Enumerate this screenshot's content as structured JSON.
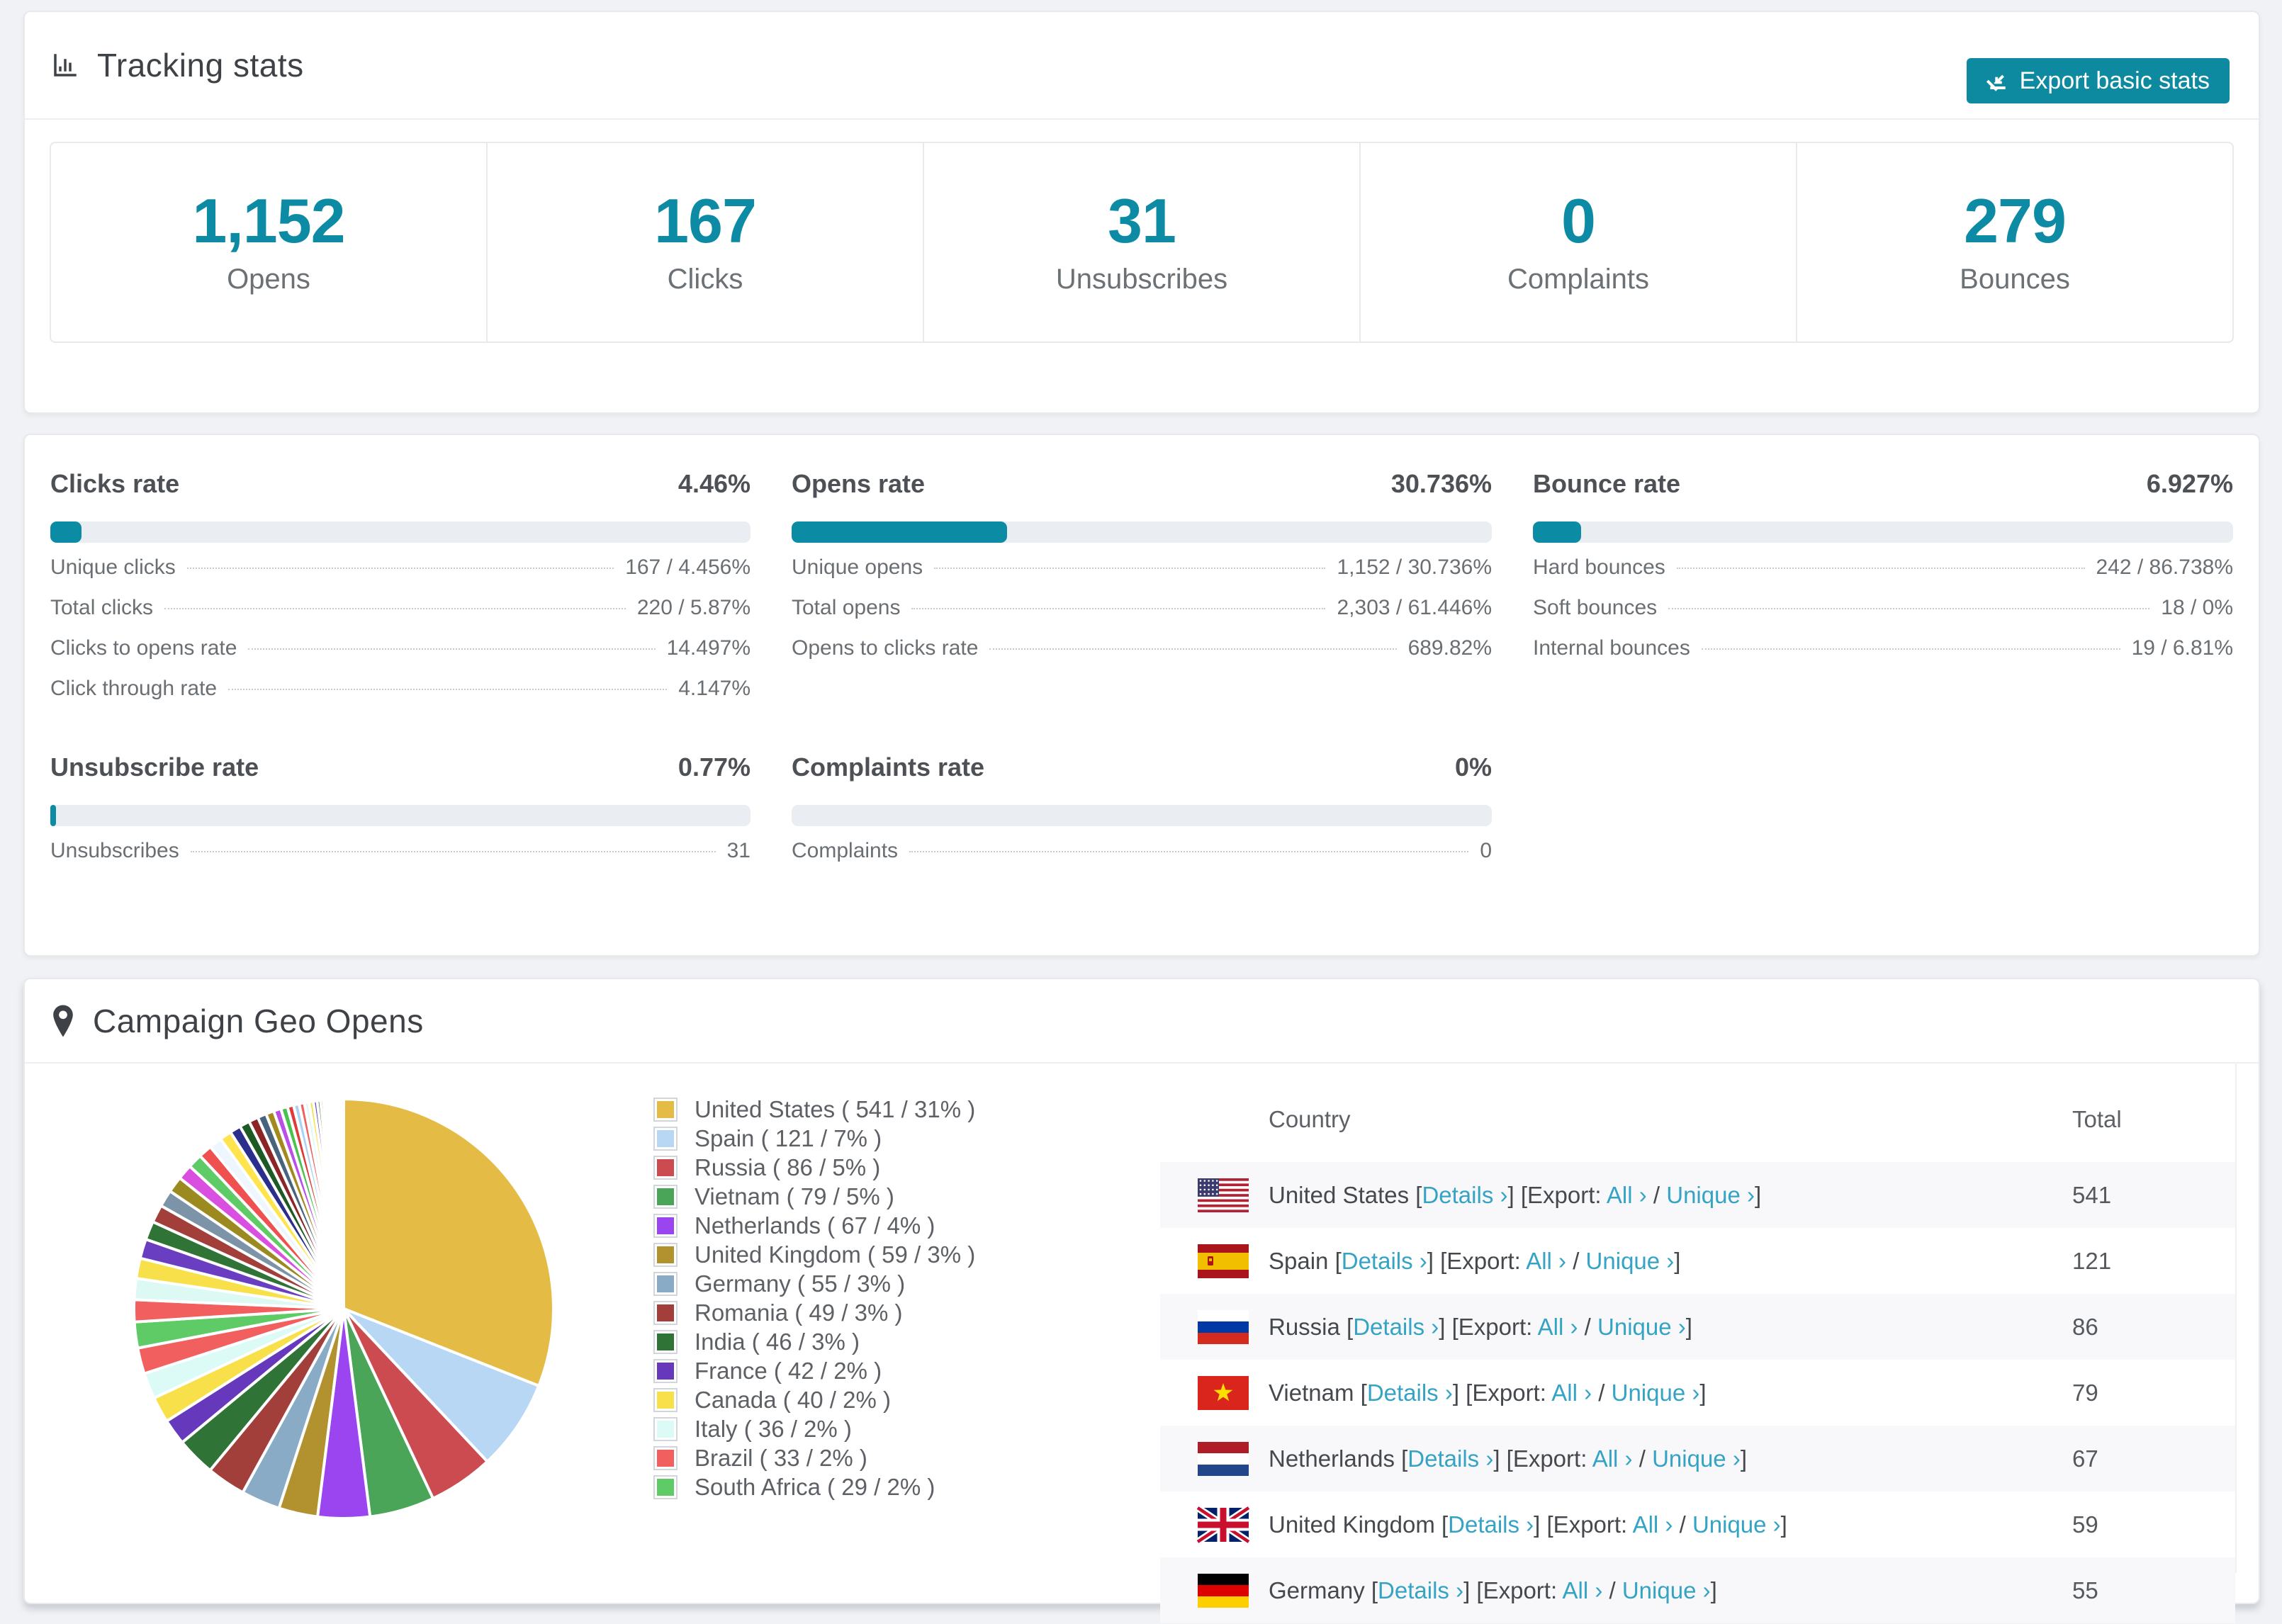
{
  "colors": {
    "accent_teal": "#0d8ba4",
    "button_teal": "#0d8a9f",
    "bar_fill": "#0c8ba5",
    "bar_track": "#eaedf1",
    "link": "#35a3c4",
    "row_alt": "#f8f8fa"
  },
  "tracking": {
    "title": "Tracking stats",
    "export_button": "Export basic stats",
    "stats": [
      {
        "value": "1,152",
        "label": "Opens"
      },
      {
        "value": "167",
        "label": "Clicks"
      },
      {
        "value": "31",
        "label": "Unsubscribes"
      },
      {
        "value": "0",
        "label": "Complaints"
      },
      {
        "value": "279",
        "label": "Bounces"
      }
    ]
  },
  "rates": {
    "clicks": {
      "title": "Clicks rate",
      "value": "4.46%",
      "percent": 4.46,
      "lines": [
        {
          "label": "Unique clicks",
          "value": "167 / 4.456%"
        },
        {
          "label": "Total clicks",
          "value": "220 / 5.87%"
        },
        {
          "label": "Clicks to opens rate",
          "value": "14.497%"
        },
        {
          "label": "Click through rate",
          "value": "4.147%"
        }
      ]
    },
    "opens": {
      "title": "Opens rate",
      "value": "30.736%",
      "percent": 30.736,
      "lines": [
        {
          "label": "Unique opens",
          "value": "1,152 / 30.736%"
        },
        {
          "label": "Total opens",
          "value": "2,303 / 61.446%"
        },
        {
          "label": "Opens to clicks rate",
          "value": "689.82%"
        }
      ]
    },
    "bounce": {
      "title": "Bounce rate",
      "value": "6.927%",
      "percent": 6.927,
      "lines": [
        {
          "label": "Hard bounces",
          "value": "242 / 86.738%"
        },
        {
          "label": "Soft bounces",
          "value": "18 / 0%"
        },
        {
          "label": "Internal bounces",
          "value": "19 / 6.81%"
        }
      ]
    },
    "unsubscribe": {
      "title": "Unsubscribe rate",
      "value": "0.77%",
      "percent": 0.77,
      "lines": [
        {
          "label": "Unsubscribes",
          "value": "31"
        }
      ]
    },
    "complaints": {
      "title": "Complaints rate",
      "value": "0%",
      "percent": 0,
      "lines": [
        {
          "label": "Complaints",
          "value": "0"
        }
      ]
    }
  },
  "geo": {
    "title": "Campaign Geo Opens",
    "table": {
      "columns": [
        "Country",
        "Total"
      ],
      "details_label": "Details",
      "export_prefix": "Export:",
      "all_label": "All",
      "unique_label": "Unique",
      "chevron": "›",
      "rows": [
        {
          "country": "United States",
          "flag": "us",
          "total": "541"
        },
        {
          "country": "Spain",
          "flag": "es",
          "total": "121"
        },
        {
          "country": "Russia",
          "flag": "ru",
          "total": "86"
        },
        {
          "country": "Vietnam",
          "flag": "vn",
          "total": "79"
        },
        {
          "country": "Netherlands",
          "flag": "nl",
          "total": "67"
        },
        {
          "country": "United Kingdom",
          "flag": "gb",
          "total": "59"
        },
        {
          "country": "Germany",
          "flag": "de",
          "total": "55"
        }
      ]
    }
  },
  "chart_data": {
    "type": "pie",
    "title": "Campaign Geo Opens",
    "legend_position": "right",
    "start_angle_deg": -90,
    "direction": "clockwise",
    "labels": [
      "United States",
      "Spain",
      "Russia",
      "Vietnam",
      "Netherlands",
      "United Kingdom",
      "Germany",
      "Romania",
      "India",
      "France",
      "Canada",
      "Italy",
      "Brazil",
      "South Africa"
    ],
    "values": [
      541,
      121,
      86,
      79,
      67,
      59,
      55,
      49,
      46,
      42,
      40,
      36,
      33,
      29
    ],
    "percents": [
      31,
      7,
      5,
      5,
      4,
      3,
      3,
      3,
      3,
      2,
      2,
      2,
      2,
      2
    ],
    "colors": [
      "#e4bc45",
      "#b7d7f4",
      "#cb4b50",
      "#4aa559",
      "#9a45ef",
      "#b2912f",
      "#89abc6",
      "#a33f3b",
      "#2f7436",
      "#6638bb",
      "#f8e04b",
      "#dcfbf6",
      "#f25f5f",
      "#5fcb67"
    ],
    "legend_texts": [
      "United States ( 541 / 31% )",
      "Spain ( 121 / 7% )",
      "Russia ( 86 / 5% )",
      "Vietnam ( 79 / 5% )",
      "Netherlands ( 67 / 4% )",
      "United Kingdom ( 59 / 3% )",
      "Germany ( 55 / 3% )",
      "Romania ( 49 / 3% )",
      "India ( 46 / 3% )",
      "France ( 42 / 2% )",
      "Canada ( 40 / 2% )",
      "Italy ( 36 / 2% )",
      "Brazil ( 33 / 2% )",
      "South Africa ( 29 / 2% )"
    ],
    "others": {
      "note": "many small unlabeled slices completing the circle",
      "values": [
        1.69,
        1.63,
        1.56,
        1.5,
        1.43,
        1.37,
        1.3,
        1.24,
        1.17,
        1.11,
        1.04,
        0.98,
        0.91,
        0.85,
        0.78,
        0.73,
        0.68,
        0.62,
        0.57,
        0.52,
        0.48,
        0.44,
        0.4,
        0.36,
        0.33,
        0.29,
        0.26,
        0.23,
        0.21,
        0.18,
        0.16,
        0.14,
        0.13,
        0.12,
        0.1,
        0.09,
        0.08,
        0.07,
        0.06,
        0.05,
        0.05,
        0.04,
        0.03,
        0.03
      ],
      "colors_cycle": [
        "#f25f5f",
        "#dcf9f4",
        "#f8e04b",
        "#6a3ec0",
        "#2f7436",
        "#a33f3b",
        "#7d93a8",
        "#9a8a20",
        "#d950e0",
        "#5fcb67",
        "#ef5050",
        "#eef6ff",
        "#ffe44d",
        "#2b2e8a",
        "#1d5a24",
        "#8c2525",
        "#47637d",
        "#a38a1e",
        "#b84fe8",
        "#49c24f",
        "#e03a3a",
        "#a9d3f2"
      ]
    }
  }
}
